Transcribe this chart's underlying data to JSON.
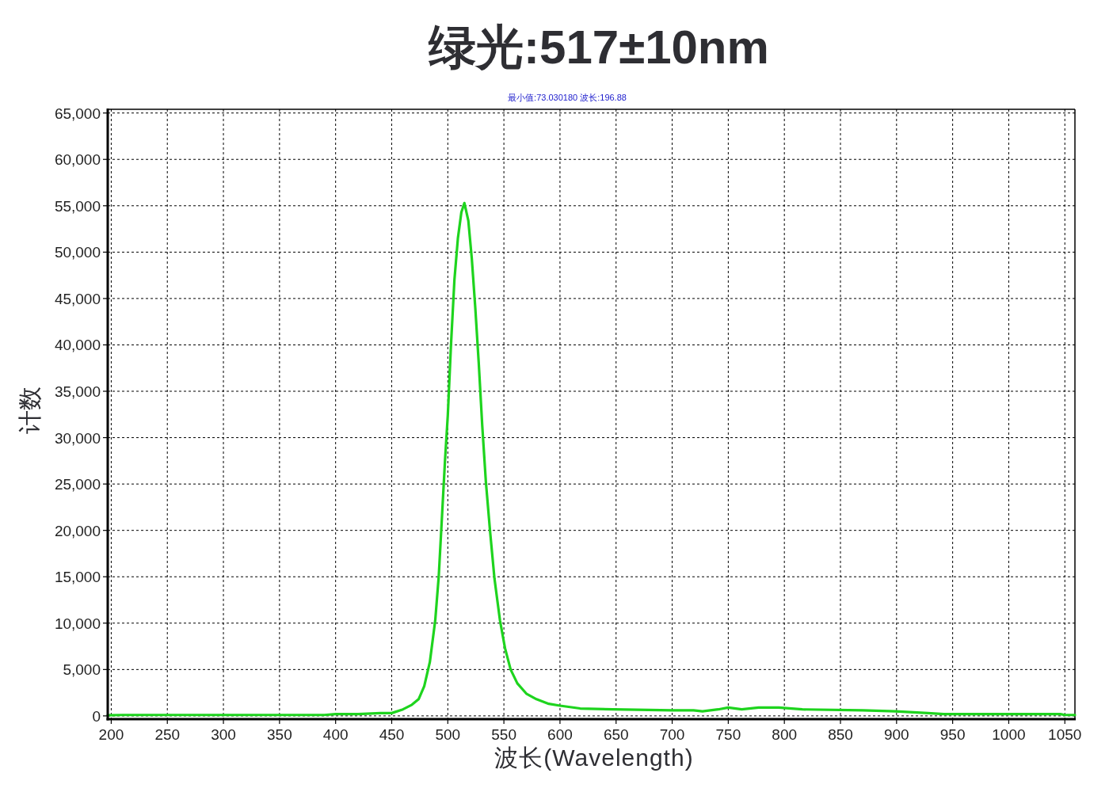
{
  "chart_data": {
    "type": "line",
    "title": "绿光:517±10nm",
    "annotations": [
      "最小值:73.030180  波长:196.88"
    ],
    "xlabel": "波长(Wavelength)",
    "ylabel": "计数",
    "x": [
      196.88,
      210,
      220,
      240,
      250,
      300,
      350,
      390,
      400,
      420,
      440,
      450,
      460,
      468,
      474,
      479,
      484,
      488.8,
      491.9,
      495,
      497.5,
      500,
      502.8,
      505.9,
      509,
      512.1,
      514.8,
      518.3,
      521.4,
      524.5,
      527.6,
      530.7,
      533.9,
      537.6,
      541.6,
      546.5,
      551,
      556,
      562,
      570,
      579,
      590,
      600,
      618,
      647,
      700,
      719,
      727,
      741,
      750,
      762,
      777,
      795,
      816,
      870,
      899,
      928,
      942,
      1046,
      1050,
      1059
    ],
    "series": [
      {
        "color": "#1ed41e",
        "values": [
          73,
          100,
          100,
          100,
          100,
          100,
          100,
          100,
          200,
          200,
          300,
          300,
          700,
          1200,
          1800,
          3200,
          5800,
          10300,
          15000,
          21900,
          27500,
          32400,
          39900,
          47000,
          51500,
          54300,
          55300,
          53400,
          49300,
          44000,
          38000,
          31300,
          25300,
          20000,
          14800,
          10300,
          7300,
          5000,
          3500,
          2400,
          1800,
          1300,
          1100,
          800,
          700,
          600,
          600,
          500,
          700,
          900,
          700,
          900,
          900,
          700,
          600,
          500,
          300,
          200,
          200,
          100,
          100
        ]
      }
    ],
    "xlim": [
      196.88,
      1059
    ],
    "ylim": [
      -350,
      65400
    ],
    "xticks": [
      200,
      250,
      300,
      350,
      400,
      450,
      500,
      550,
      600,
      650,
      700,
      750,
      800,
      850,
      900,
      950,
      1000,
      1050
    ],
    "yticks": [
      0,
      {
        "value": 5000,
        "label": "5,000"
      },
      {
        "value": 10000,
        "label": "10,000"
      },
      {
        "value": 15000,
        "label": "15,000"
      },
      {
        "value": 20000,
        "label": "20,000"
      },
      {
        "value": 25000,
        "label": "25,000"
      },
      {
        "value": 30000,
        "label": "30,000"
      },
      {
        "value": 35000,
        "label": "35,000"
      },
      {
        "value": 40000,
        "label": "40,000"
      },
      {
        "value": 45000,
        "label": "45,000"
      },
      {
        "value": 50000,
        "label": "50,000"
      },
      {
        "value": 55000,
        "label": "55,000"
      },
      {
        "value": 60000,
        "label": "60,000"
      },
      {
        "value": 65000,
        "label": "65,000"
      }
    ],
    "grid": true
  }
}
